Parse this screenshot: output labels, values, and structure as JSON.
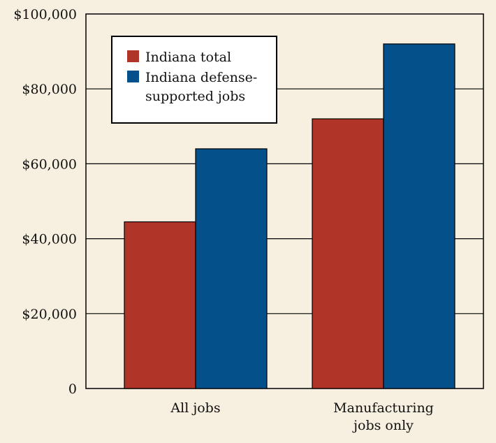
{
  "chart_data": {
    "type": "bar",
    "title": "",
    "xlabel": "",
    "ylabel": "",
    "ylim": [
      0,
      100000
    ],
    "yticks": [
      {
        "value": 0,
        "label": "0"
      },
      {
        "value": 20000,
        "label": "$20,000"
      },
      {
        "value": 40000,
        "label": "$40,000"
      },
      {
        "value": 60000,
        "label": "$60,000"
      },
      {
        "value": 80000,
        "label": "$80,000"
      },
      {
        "value": 100000,
        "label": "$100,000"
      }
    ],
    "categories": [
      {
        "lines": [
          "All jobs"
        ]
      },
      {
        "lines": [
          "Manufacturing",
          "jobs only"
        ]
      }
    ],
    "series": [
      {
        "name_lines": [
          "Indiana total"
        ],
        "color": "#b03427",
        "values": [
          44500,
          72000
        ]
      },
      {
        "name_lines": [
          "Indiana defense-",
          "supported jobs"
        ],
        "color": "#03508a",
        "values": [
          64000,
          92000
        ]
      }
    ],
    "grid": true,
    "legend_position": "top-left"
  }
}
